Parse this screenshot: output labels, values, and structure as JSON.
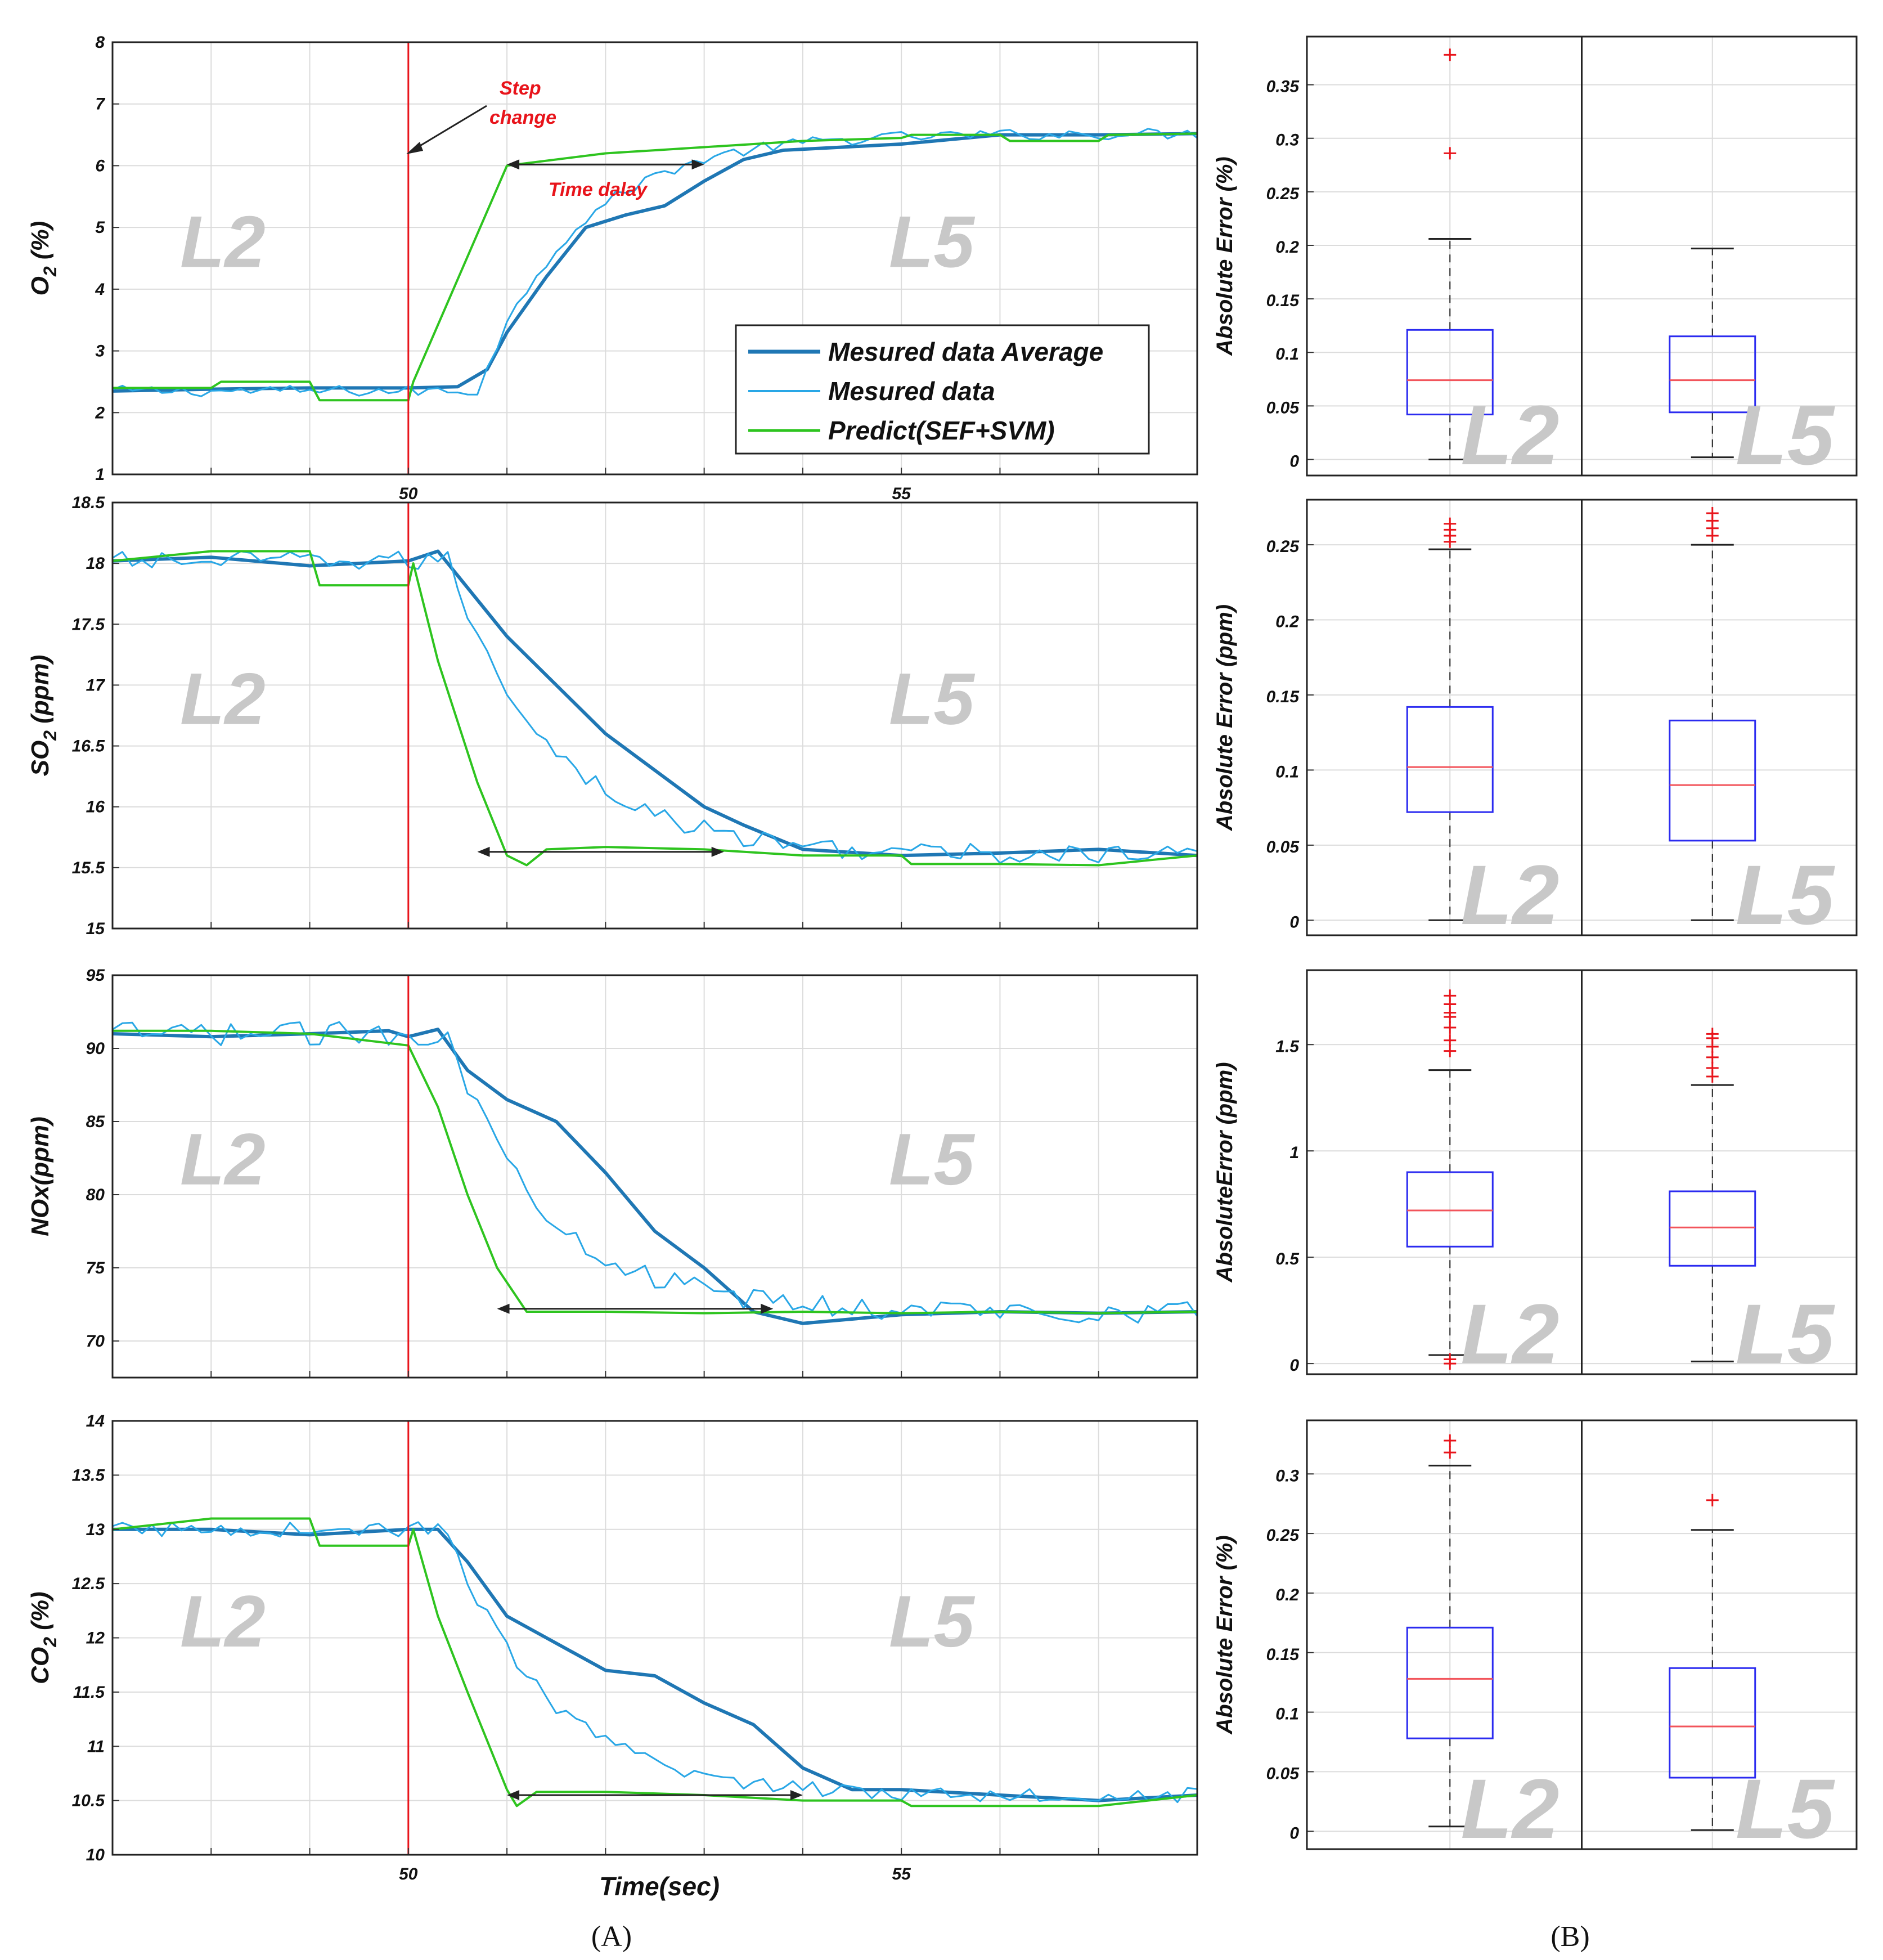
{
  "colors": {
    "average": "#1f77b4",
    "measured": "#29a7e6",
    "predict": "#2ec41f",
    "step": "#e8141b",
    "box": "#2b2bf0",
    "median": "#f2545b",
    "outlier": "#e8141b",
    "zone": "#c8c8c8",
    "grid": "#dcdcdc"
  },
  "chart_data": [
    {
      "id": "o2",
      "type": "line",
      "panel": "A",
      "ylabel": "O",
      "ylabel_sub": "2",
      "ylabel_tail": " (%)",
      "ylim": [
        1,
        8
      ],
      "yticks": [
        "1",
        "2",
        "3",
        "4",
        "5",
        "6",
        "7",
        "8"
      ],
      "xlim": [
        47,
        58
      ],
      "xticks": [
        50,
        55
      ],
      "xticklabels": [
        "50",
        "55"
      ],
      "zone_left": "L2",
      "zone_right": "L5",
      "step_time": 50,
      "series": [
        {
          "name": "Mesured data Average",
          "key": "average",
          "points": [
            [
              47,
              2.35
            ],
            [
              48,
              2.38
            ],
            [
              49,
              2.4
            ],
            [
              50,
              2.4
            ],
            [
              50.5,
              2.42
            ],
            [
              50.8,
              2.7
            ],
            [
              51,
              3.3
            ],
            [
              51.4,
              4.2
            ],
            [
              51.8,
              5.0
            ],
            [
              52.2,
              5.2
            ],
            [
              52.6,
              5.35
            ],
            [
              53,
              5.75
            ],
            [
              53.4,
              6.1
            ],
            [
              53.8,
              6.25
            ],
            [
              54.4,
              6.3
            ],
            [
              55,
              6.35
            ],
            [
              56,
              6.5
            ],
            [
              57,
              6.5
            ],
            [
              58,
              6.52
            ]
          ]
        },
        {
          "name": "Mesured data",
          "key": "measured",
          "start": 2.35,
          "end": 6.52,
          "delay": 0.7,
          "tau": 3.0,
          "noise": 0.09
        },
        {
          "name": "Predict(SEF+SVM)",
          "key": "predict",
          "points": [
            [
              47,
              2.4
            ],
            [
              48,
              2.4
            ],
            [
              48.1,
              2.5
            ],
            [
              49,
              2.5
            ],
            [
              49.1,
              2.2
            ],
            [
              50,
              2.2
            ],
            [
              50.05,
              2.5
            ],
            [
              51,
              6.0
            ],
            [
              52,
              6.2
            ],
            [
              53,
              6.3
            ],
            [
              54,
              6.4
            ],
            [
              55,
              6.45
            ],
            [
              55.1,
              6.5
            ],
            [
              56,
              6.5
            ],
            [
              56.1,
              6.4
            ],
            [
              57,
              6.4
            ],
            [
              57.1,
              6.5
            ],
            [
              58,
              6.52
            ]
          ]
        }
      ],
      "delay_arrow": {
        "x0": 51.0,
        "x1": 53.0,
        "y": 6.02
      },
      "annotations": {
        "step": "Step\nchange",
        "delay": "Time dalay"
      }
    },
    {
      "id": "so2",
      "type": "line",
      "panel": "A",
      "ylabel": "SO",
      "ylabel_sub": "2",
      "ylabel_tail": " (ppm)",
      "ylim": [
        15,
        18.5
      ],
      "yticks": [
        "15",
        "15.5",
        "16",
        "16.5",
        "17",
        "17.5",
        "18",
        "18.5"
      ],
      "xlim": [
        47,
        58
      ],
      "xticks": [
        50,
        55
      ],
      "xticklabels": [],
      "zone_left": "L2",
      "zone_right": "L5",
      "step_time": 50,
      "series": [
        {
          "name": "Mesured data Average",
          "key": "average",
          "points": [
            [
              47,
              18.02
            ],
            [
              48,
              18.05
            ],
            [
              49,
              17.98
            ],
            [
              50,
              18.02
            ],
            [
              50.3,
              18.1
            ],
            [
              50.5,
              17.9
            ],
            [
              51,
              17.4
            ],
            [
              51.5,
              17.0
            ],
            [
              52,
              16.6
            ],
            [
              52.5,
              16.3
            ],
            [
              53,
              16.0
            ],
            [
              53.4,
              15.85
            ],
            [
              54,
              15.65
            ],
            [
              55,
              15.6
            ],
            [
              56,
              15.62
            ],
            [
              57,
              15.65
            ],
            [
              58,
              15.6
            ]
          ]
        },
        {
          "name": "Mesured data",
          "key": "measured",
          "start": 18.02,
          "end": 15.6,
          "delay": 0.4,
          "tau": 3.2,
          "noise": 0.08
        },
        {
          "name": "Predict(SEF+SVM)",
          "key": "predict",
          "points": [
            [
              47,
              18.02
            ],
            [
              48,
              18.1
            ],
            [
              49,
              18.1
            ],
            [
              49.1,
              17.82
            ],
            [
              50,
              17.82
            ],
            [
              50.05,
              18.0
            ],
            [
              50.3,
              17.2
            ],
            [
              50.7,
              16.2
            ],
            [
              51,
              15.6
            ],
            [
              51.2,
              15.52
            ],
            [
              51.4,
              15.65
            ],
            [
              52,
              15.67
            ],
            [
              53,
              15.65
            ],
            [
              54,
              15.6
            ],
            [
              55,
              15.6
            ],
            [
              55.1,
              15.53
            ],
            [
              56,
              15.53
            ],
            [
              57,
              15.52
            ],
            [
              58,
              15.6
            ]
          ]
        }
      ],
      "delay_arrow": {
        "x0": 50.7,
        "x1": 53.2,
        "y": 15.63
      }
    },
    {
      "id": "nox",
      "type": "line",
      "panel": "A",
      "ylabel": "NOx(ppm)",
      "ylabel_sub": "",
      "ylabel_tail": "",
      "ylim": [
        67.5,
        95
      ],
      "yticks": [
        "70",
        "75",
        "80",
        "85",
        "90",
        "95"
      ],
      "xlim": [
        47,
        58
      ],
      "xticks": [
        50,
        55
      ],
      "xticklabels": [],
      "zone_left": "L2",
      "zone_right": "L5",
      "step_time": 50,
      "series": [
        {
          "name": "Mesured data Average",
          "key": "average",
          "points": [
            [
              47,
              91.0
            ],
            [
              48,
              90.8
            ],
            [
              49,
              91.0
            ],
            [
              49.8,
              91.2
            ],
            [
              50,
              90.8
            ],
            [
              50.3,
              91.3
            ],
            [
              50.6,
              88.5
            ],
            [
              51,
              86.5
            ],
            [
              51.5,
              85.0
            ],
            [
              52,
              81.5
            ],
            [
              52.5,
              77.5
            ],
            [
              53,
              75.0
            ],
            [
              53.5,
              72.0
            ],
            [
              54,
              71.2
            ],
            [
              55,
              71.8
            ],
            [
              56,
              72.0
            ],
            [
              57,
              71.9
            ],
            [
              58,
              72.0
            ]
          ]
        },
        {
          "name": "Mesured data",
          "key": "measured",
          "start": 91.0,
          "end": 72.0,
          "delay": 0.4,
          "tau": 3.0,
          "noise": 0.8
        },
        {
          "name": "Predict(SEF+SVM)",
          "key": "predict",
          "points": [
            [
              47,
              91.2
            ],
            [
              48,
              91.2
            ],
            [
              49,
              91.0
            ],
            [
              50,
              90.2
            ],
            [
              50.3,
              86.0
            ],
            [
              50.6,
              80.0
            ],
            [
              50.9,
              75.0
            ],
            [
              51.2,
              72.0
            ],
            [
              52,
              72.0
            ],
            [
              53,
              71.9
            ],
            [
              54,
              72.0
            ],
            [
              55,
              71.9
            ],
            [
              56,
              72.0
            ],
            [
              57,
              71.9
            ],
            [
              58,
              72.0
            ]
          ]
        }
      ],
      "delay_arrow": {
        "x0": 50.9,
        "x1": 53.7,
        "y": 72.2
      }
    },
    {
      "id": "co2",
      "type": "line",
      "panel": "A",
      "ylabel": "CO",
      "ylabel_sub": "2",
      "ylabel_tail": " (%)",
      "ylim": [
        10,
        14
      ],
      "yticks": [
        "10",
        "10.5",
        "11",
        "11.5",
        "12",
        "12.5",
        "13",
        "13.5",
        "14"
      ],
      "xlim": [
        47,
        58
      ],
      "xticks": [
        50,
        55
      ],
      "xticklabels": [
        "50",
        "55"
      ],
      "zone_left": "L2",
      "zone_right": "L5",
      "step_time": 50,
      "series": [
        {
          "name": "Mesured data Average",
          "key": "average",
          "points": [
            [
              47,
              13.0
            ],
            [
              48,
              13.0
            ],
            [
              49,
              12.95
            ],
            [
              50,
              13.0
            ],
            [
              50.3,
              13.0
            ],
            [
              50.6,
              12.7
            ],
            [
              51,
              12.2
            ],
            [
              51.5,
              11.95
            ],
            [
              52,
              11.7
            ],
            [
              52.5,
              11.65
            ],
            [
              53,
              11.4
            ],
            [
              53.5,
              11.2
            ],
            [
              54,
              10.8
            ],
            [
              54.5,
              10.6
            ],
            [
              55,
              10.6
            ],
            [
              56,
              10.55
            ],
            [
              57,
              10.5
            ],
            [
              58,
              10.55
            ]
          ]
        },
        {
          "name": "Mesured data",
          "key": "measured",
          "start": 13.0,
          "end": 10.55,
          "delay": 0.4,
          "tau": 3.0,
          "noise": 0.07
        },
        {
          "name": "Predict(SEF+SVM)",
          "key": "predict",
          "points": [
            [
              47,
              13.0
            ],
            [
              48,
              13.1
            ],
            [
              49,
              13.1
            ],
            [
              49.1,
              12.85
            ],
            [
              50,
              12.85
            ],
            [
              50.05,
              13.0
            ],
            [
              50.3,
              12.2
            ],
            [
              50.6,
              11.5
            ],
            [
              51,
              10.6
            ],
            [
              51.1,
              10.45
            ],
            [
              51.3,
              10.58
            ],
            [
              52,
              10.58
            ],
            [
              53,
              10.55
            ],
            [
              54,
              10.5
            ],
            [
              54.5,
              10.5
            ],
            [
              55,
              10.5
            ],
            [
              55.1,
              10.45
            ],
            [
              56,
              10.45
            ],
            [
              57,
              10.45
            ],
            [
              58,
              10.55
            ]
          ]
        }
      ],
      "delay_arrow": {
        "x0": 51.0,
        "x1": 54.0,
        "y": 10.55
      }
    },
    {
      "id": "err_o2",
      "type": "box",
      "panel": "B",
      "ylabel": "Absolute Error (%)",
      "ylim": [
        -0.015,
        0.395
      ],
      "yticks": [
        0,
        0.05,
        0.1,
        0.15,
        0.2,
        0.25,
        0.3,
        0.35
      ],
      "yticklabels": [
        "0",
        "0.05",
        "0.1",
        "0.15",
        "0.2",
        "0.25",
        "0.3",
        "0.35"
      ],
      "boxes": [
        {
          "name": "L2",
          "min": 0.0,
          "q1": 0.042,
          "median": 0.074,
          "q3": 0.121,
          "max": 0.206,
          "outliers": [
            0.286,
            0.378
          ]
        },
        {
          "name": "L5",
          "min": 0.002,
          "q1": 0.044,
          "median": 0.074,
          "q3": 0.115,
          "max": 0.197,
          "outliers": []
        }
      ]
    },
    {
      "id": "err_so2",
      "type": "box",
      "panel": "B",
      "ylabel": "Absolute Error (ppm)",
      "ylim": [
        -0.01,
        0.28
      ],
      "yticks": [
        0,
        0.05,
        0.1,
        0.15,
        0.2,
        0.25
      ],
      "yticklabels": [
        "0",
        "0.05",
        "0.1",
        "0.15",
        "0.2",
        "0.25"
      ],
      "boxes": [
        {
          "name": "L2",
          "min": 0.0,
          "q1": 0.072,
          "median": 0.102,
          "q3": 0.142,
          "max": 0.247,
          "outliers": [
            0.252,
            0.256,
            0.26,
            0.264
          ]
        },
        {
          "name": "L5",
          "min": 0.0,
          "q1": 0.053,
          "median": 0.09,
          "q3": 0.133,
          "max": 0.25,
          "outliers": [
            0.256,
            0.261,
            0.266,
            0.271
          ]
        }
      ]
    },
    {
      "id": "err_nox",
      "type": "box",
      "panel": "B",
      "ylabel": "AbsoluteError (ppm)",
      "ylim": [
        -0.05,
        1.85
      ],
      "yticks": [
        0,
        0.5,
        1,
        1.5
      ],
      "yticklabels": [
        "0",
        "0.5",
        "1",
        "1.5"
      ],
      "boxes": [
        {
          "name": "L2",
          "min": 0.04,
          "q1": 0.55,
          "median": 0.72,
          "q3": 0.9,
          "max": 1.38,
          "outliers": [
            0.0,
            0.02,
            1.47,
            1.52,
            1.58,
            1.63,
            1.65,
            1.69,
            1.73
          ]
        },
        {
          "name": "L5",
          "min": 0.01,
          "q1": 0.46,
          "median": 0.64,
          "q3": 0.81,
          "max": 1.31,
          "outliers": [
            1.35,
            1.39,
            1.44,
            1.49,
            1.53,
            1.55
          ]
        }
      ]
    },
    {
      "id": "err_co2",
      "type": "box",
      "panel": "B",
      "ylabel": "Absolute Error (%)",
      "ylim": [
        -0.015,
        0.345
      ],
      "yticks": [
        0,
        0.05,
        0.1,
        0.15,
        0.2,
        0.25,
        0.3
      ],
      "yticklabels": [
        "0",
        "0.05",
        "0.1",
        "0.15",
        "0.2",
        "0.25",
        "0.3"
      ],
      "boxes": [
        {
          "name": "L2",
          "min": 0.004,
          "q1": 0.078,
          "median": 0.128,
          "q3": 0.171,
          "max": 0.307,
          "outliers": [
            0.318,
            0.328
          ]
        },
        {
          "name": "L5",
          "min": 0.001,
          "q1": 0.045,
          "median": 0.088,
          "q3": 0.137,
          "max": 0.253,
          "outliers": [
            0.278
          ]
        }
      ]
    }
  ],
  "legend": {
    "average": "Mesured data Average",
    "measured": "Mesured data",
    "predict": "Predict(SEF+SVM)"
  },
  "xlabel": "Time(sec)",
  "panel_labels": [
    "(A)",
    "(B)"
  ]
}
